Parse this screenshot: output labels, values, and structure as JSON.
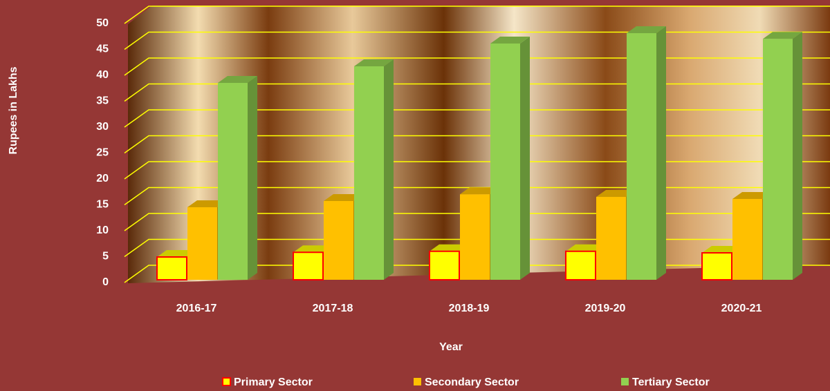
{
  "chart_data": {
    "type": "bar3d",
    "x_label": "Year",
    "y_label": "Rupees in Lakhs",
    "categories": [
      "2016-17",
      "2017-18",
      "2018-19",
      "2019-20",
      "2020-21"
    ],
    "series": [
      {
        "name": "Primary Sector",
        "color": "#ffff00",
        "values": [
          4.4,
          5.3,
          5.5,
          5.5,
          5.2
        ]
      },
      {
        "name": "Secondary Sector",
        "color": "#ffc000",
        "values": [
          14,
          15.2,
          16.5,
          16,
          15.6
        ]
      },
      {
        "name": "Tertiary Sector",
        "color": "#92d050",
        "values": [
          38,
          41.2,
          45.6,
          47.6,
          46.5
        ]
      }
    ],
    "ylim": [
      0,
      50
    ],
    "yticks": [
      0,
      5,
      10,
      15,
      20,
      25,
      30,
      35,
      40,
      45,
      50
    ],
    "grid": true,
    "legend": "bottom"
  }
}
